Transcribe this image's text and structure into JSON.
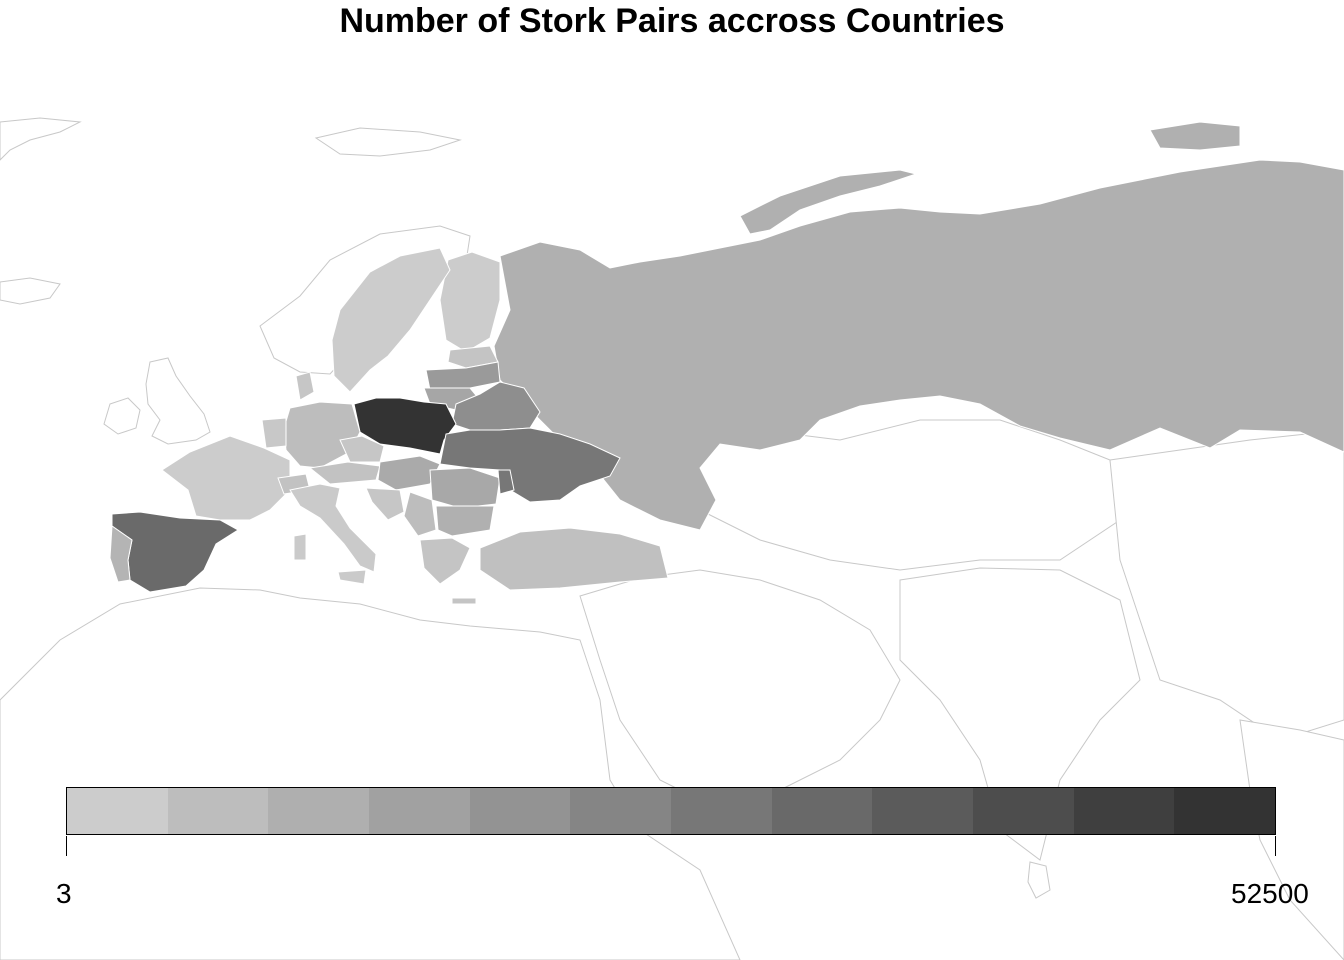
{
  "title": "Number of Stork Pairs accross Countries",
  "legend": {
    "min_label": "3",
    "max_label": "52500",
    "colors": [
      "#cccccc",
      "#bdbdbd",
      "#afafaf",
      "#a1a1a1",
      "#939393",
      "#858585",
      "#777777",
      "#696969",
      "#5b5b5b",
      "#4d4d4d",
      "#3f3f3f",
      "#333333"
    ]
  },
  "palette": {
    "base_fill": "#ffffff",
    "base_stroke": "#c8c8c8",
    "highlight_stroke": "#ffffff"
  }
}
